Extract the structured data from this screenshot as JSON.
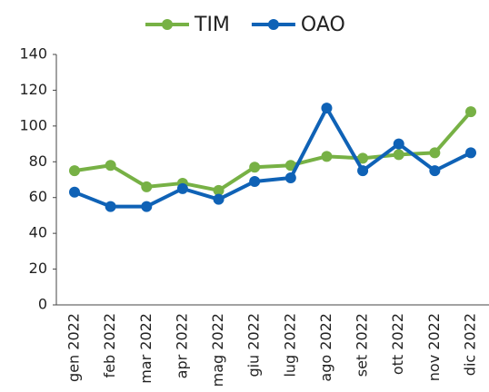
{
  "chart_data": {
    "type": "line",
    "categories": [
      "gen 2022",
      "feb 2022",
      "mar 2022",
      "apr 2022",
      "mag 2022",
      "giu 2022",
      "lug 2022",
      "ago 2022",
      "set 2022",
      "ott 2022",
      "nov 2022",
      "dic 2022"
    ],
    "series": [
      {
        "name": "TIM",
        "color": "#77b145",
        "values": [
          75,
          78,
          66,
          68,
          64,
          77,
          78,
          83,
          82,
          84,
          85,
          108
        ]
      },
      {
        "name": "OAO",
        "color": "#0f62b6",
        "values": [
          63,
          55,
          55,
          65,
          59,
          69,
          71,
          110,
          75,
          90,
          75,
          85
        ]
      }
    ],
    "ylim": [
      0,
      140
    ],
    "yticks": [
      0,
      20,
      40,
      60,
      80,
      100,
      120,
      140
    ],
    "grid": false,
    "legend": "top"
  }
}
